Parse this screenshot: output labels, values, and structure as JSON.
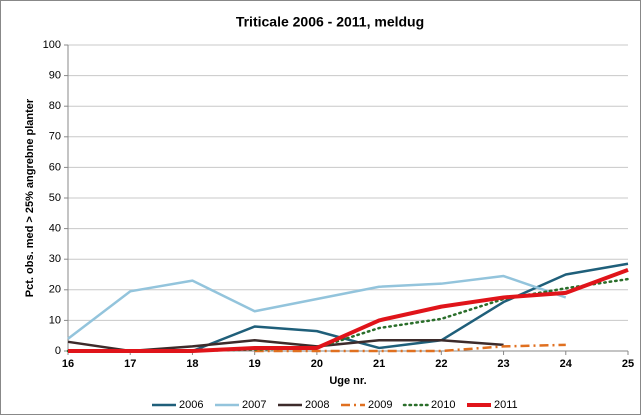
{
  "chart_data": {
    "type": "line",
    "title": "Triticale 2006 - 2011, meldug",
    "x_label": "Uge nr.",
    "y_label": "Pct. obs. med > 25% angrebne planter",
    "x": [
      16,
      17,
      18,
      19,
      20,
      21,
      22,
      23,
      24,
      25
    ],
    "xlim": [
      16,
      25
    ],
    "xticks": [
      16,
      17,
      18,
      19,
      20,
      21,
      22,
      23,
      24,
      25
    ],
    "ylim": [
      0,
      100
    ],
    "yticks": [
      0,
      10,
      20,
      30,
      40,
      50,
      60,
      70,
      80,
      90,
      100
    ],
    "grid": true,
    "legend": "bottom",
    "series": [
      {
        "name": "2006",
        "color": "#1f5f7a",
        "line_style": "solid",
        "line_width": 2.5,
        "values": [
          0,
          0,
          0,
          8,
          6.5,
          1,
          3.5,
          16,
          25,
          28.5
        ]
      },
      {
        "name": "2007",
        "color": "#93c4dc",
        "line_style": "solid",
        "line_width": 2.5,
        "values": [
          4,
          19.5,
          23,
          13,
          17,
          21,
          22,
          24.5,
          17.5,
          null
        ]
      },
      {
        "name": "2008",
        "color": "#3d2b2b",
        "line_style": "solid",
        "line_width": 2.5,
        "values": [
          3,
          0,
          1.5,
          3.5,
          1.5,
          3.5,
          3.5,
          2,
          null,
          null
        ]
      },
      {
        "name": "2009",
        "color": "#e07020",
        "line_style": "dashdot",
        "line_width": 2.5,
        "values": [
          null,
          null,
          null,
          0,
          0,
          0,
          0,
          1.5,
          2,
          null
        ]
      },
      {
        "name": "2010",
        "color": "#2a6e2a",
        "line_style": "dotted",
        "line_width": 2.5,
        "values": [
          0,
          0,
          0,
          0.5,
          1,
          7.5,
          10.5,
          17,
          20.5,
          23.5
        ]
      },
      {
        "name": "2011",
        "color": "#e0141a",
        "line_style": "solid",
        "line_width": 4,
        "values": [
          0,
          0,
          0,
          1,
          1,
          10,
          14.5,
          17.5,
          19,
          26.5
        ]
      }
    ]
  }
}
